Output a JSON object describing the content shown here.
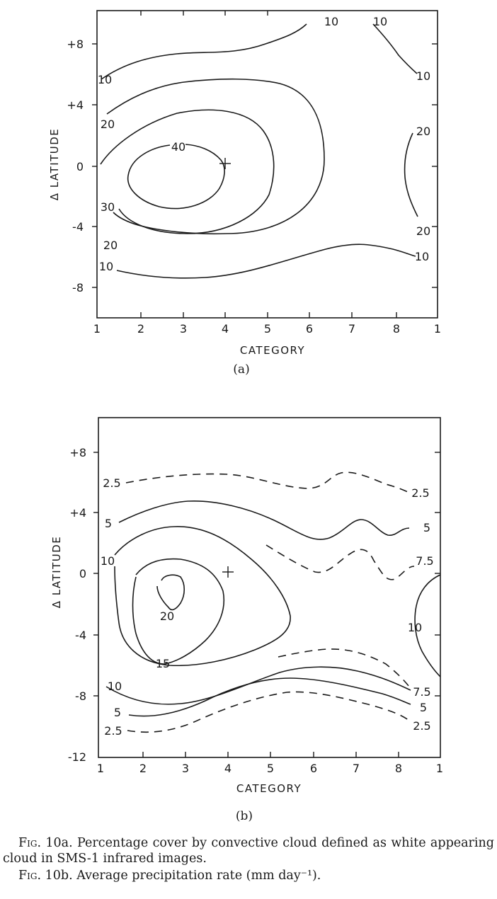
{
  "panels": [
    {
      "panel_label": "(a)",
      "xlabel": "CATEGORY",
      "ylabel": "Δ LATITUDE",
      "x_ticks": [
        "1",
        "2",
        "3",
        "4",
        "5",
        "6",
        "7",
        "8",
        "1"
      ],
      "y_ticks": [
        {
          "value": 8,
          "label": "+8"
        },
        {
          "value": 4,
          "label": "+4"
        },
        {
          "value": 0,
          "label": "0"
        },
        {
          "value": -4,
          "label": "-4"
        },
        {
          "value": -8,
          "label": "-8"
        }
      ],
      "contour_labels": [
        "10",
        "10",
        "10",
        "10",
        "20",
        "20",
        "20",
        "40",
        "30",
        "20",
        "10",
        "10"
      ],
      "marker": "+"
    },
    {
      "panel_label": "(b)",
      "xlabel": "CATEGORY",
      "ylabel": "Δ LATITUDE",
      "x_ticks": [
        "1",
        "2",
        "3",
        "4",
        "5",
        "6",
        "7",
        "8",
        "1"
      ],
      "y_ticks": [
        {
          "value": 8,
          "label": "+8"
        },
        {
          "value": 4,
          "label": "+4"
        },
        {
          "value": 0,
          "label": "0"
        },
        {
          "value": -4,
          "label": "-4"
        },
        {
          "value": -8,
          "label": "-8"
        },
        {
          "value": -12,
          "label": "-12"
        }
      ],
      "contour_labels": [
        "2.5",
        "2.5",
        "5",
        "5",
        "10",
        "7.5",
        "20",
        "10",
        "15",
        "10",
        "7.5",
        "5",
        "5",
        "2.5",
        "2.5"
      ],
      "marker": "+"
    }
  ],
  "chart_data": [
    {
      "type": "contour",
      "panel": "(a)",
      "xlabel": "CATEGORY",
      "ylabel": "Δ LATITUDE",
      "x_categories": [
        "1",
        "2",
        "3",
        "4",
        "5",
        "6",
        "7",
        "8",
        "1"
      ],
      "ylim": [
        -10,
        10.5
      ],
      "contour_levels": [
        10,
        20,
        30,
        40
      ],
      "center_marker": {
        "category": 4,
        "dlat": 0
      },
      "contours": [
        {
          "level": 10,
          "style": "solid",
          "points": [
            [
              1.1,
              6
            ],
            [
              2,
              7.2
            ],
            [
              3,
              7.8
            ],
            [
              4,
              7.9
            ],
            [
              4.8,
              8.5
            ],
            [
              5.1,
              9.8
            ]
          ]
        },
        {
          "level": 10,
          "style": "solid",
          "points": [
            [
              6.8,
              10.3
            ],
            [
              7.4,
              9.2
            ],
            [
              8,
              7.8
            ],
            [
              8.4,
              6.5
            ]
          ]
        },
        {
          "level": 20,
          "style": "solid",
          "points": [
            [
              1.1,
              2.1
            ],
            [
              2,
              3.8
            ],
            [
              3,
              5
            ],
            [
              4,
              5.3
            ],
            [
              5,
              4.6
            ],
            [
              5.9,
              3
            ],
            [
              6.3,
              0
            ],
            [
              5.7,
              -3.2
            ],
            [
              4.5,
              -5.2
            ],
            [
              3,
              -5.8
            ],
            [
              2,
              -5.5
            ],
            [
              1.3,
              -4.8
            ]
          ]
        },
        {
          "level": 20,
          "style": "solid",
          "points": [
            [
              8.3,
              2
            ],
            [
              8.2,
              0
            ],
            [
              8.3,
              -2
            ],
            [
              8.5,
              -3.5
            ]
          ]
        },
        {
          "level": 30,
          "style": "solid",
          "points": [
            [
              1.1,
              0
            ],
            [
              2,
              2.5
            ],
            [
              3,
              3.7
            ],
            [
              4.1,
              3.4
            ],
            [
              4.9,
              2
            ],
            [
              5.2,
              0
            ],
            [
              4.9,
              -2.4
            ],
            [
              4,
              -4.2
            ],
            [
              3,
              -4.6
            ],
            [
              2,
              -4
            ],
            [
              1.4,
              -3
            ]
          ]
        },
        {
          "level": 40,
          "style": "solid",
          "points": [
            [
              3.1,
              1.4
            ],
            [
              4,
              0
            ],
            [
              4,
              -1.5
            ],
            [
              3,
              -3.1
            ],
            [
              2,
              -2.5
            ],
            [
              1.8,
              -1
            ],
            [
              2.3,
              0.8
            ],
            [
              3,
              1.4
            ]
          ]
        },
        {
          "level": 10,
          "style": "solid",
          "points": [
            [
              1.5,
              -7.1
            ],
            [
              2.5,
              -7.4
            ],
            [
              4,
              -7.1
            ],
            [
              5.5,
              -5.9
            ],
            [
              7,
              -5.1
            ],
            [
              8,
              -5.6
            ],
            [
              8.5,
              -6
            ]
          ]
        }
      ]
    },
    {
      "type": "contour",
      "panel": "(b)",
      "xlabel": "CATEGORY",
      "ylabel": "Δ LATITUDE",
      "x_categories": [
        "1",
        "2",
        "3",
        "4",
        "5",
        "6",
        "7",
        "8",
        "1"
      ],
      "ylim": [
        -12,
        10.3
      ],
      "contour_levels": [
        2.5,
        5,
        7.5,
        10,
        15,
        20
      ],
      "units": "mm day-1",
      "center_marker": {
        "category": 4,
        "dlat": 0
      },
      "contours": [
        {
          "level": 2.5,
          "style": "dashed",
          "points": [
            [
              1.6,
              6
            ],
            [
              3,
              6.5
            ],
            [
              5,
              5.7
            ],
            [
              6,
              6
            ],
            [
              6.7,
              6.6
            ],
            [
              7.5,
              6
            ],
            [
              8.3,
              5.3
            ]
          ]
        },
        {
          "level": 5,
          "style": "solid",
          "points": [
            [
              1.5,
              3.2
            ],
            [
              3,
              4.8
            ],
            [
              4.5,
              3.6
            ],
            [
              5.5,
              2.2
            ],
            [
              6.5,
              2
            ],
            [
              7.2,
              3.6
            ],
            [
              8,
              2.4
            ],
            [
              8.4,
              3
            ]
          ]
        },
        {
          "level": 7.5,
          "style": "dashed",
          "points": [
            [
              5,
              1.8
            ],
            [
              6,
              0
            ],
            [
              7,
              1.5
            ],
            [
              7.2,
              1.6
            ],
            [
              8,
              -0.4
            ],
            [
              8.5,
              0
            ]
          ]
        },
        {
          "level": 10,
          "style": "solid",
          "points": [
            [
              1.5,
              0.9
            ],
            [
              2,
              2.3
            ],
            [
              3,
              3.1
            ],
            [
              4,
              2.5
            ],
            [
              5.5,
              -1.5
            ],
            [
              5.5,
              -2.8
            ],
            [
              4,
              -4.5
            ],
            [
              3,
              -5.6
            ],
            [
              2,
              -4
            ],
            [
              1.5,
              -2.5
            ],
            [
              1.5,
              0.2
            ]
          ]
        },
        {
          "level": 15,
          "style": "solid",
          "points": [
            [
              1.5,
              -2.5
            ],
            [
              1.7,
              -1
            ],
            [
              2.5,
              1.8
            ],
            [
              3.5,
              1.3
            ],
            [
              4,
              -0.8
            ],
            [
              3,
              -4.8
            ],
            [
              2.5,
              -5.9
            ],
            [
              1.8,
              -5
            ],
            [
              1.5,
              -3.5
            ]
          ]
        },
        {
          "level": 20,
          "style": "solid",
          "points": [
            [
              2.3,
              -1
            ],
            [
              2.5,
              0
            ],
            [
              2.9,
              -0.5
            ],
            [
              2.7,
              -2
            ],
            [
              2.4,
              -2.3
            ]
          ]
        },
        {
          "level": 10,
          "style": "solid",
          "points": [
            [
              9,
              0
            ],
            [
              8.5,
              -2
            ],
            [
              8.5,
              -5.8
            ],
            [
              9,
              -6.7
            ]
          ]
        },
        {
          "level": 7.5,
          "style": "dashed",
          "points": [
            [
              5.2,
              -5.4
            ],
            [
              6.2,
              -5
            ],
            [
              7.2,
              -5.8
            ],
            [
              8.3,
              -7.6
            ]
          ]
        },
        {
          "level": 5,
          "style": "solid",
          "points": [
            [
              1.5,
              -9.8
            ],
            [
              2.5,
              -9.5
            ],
            [
              4,
              -7.3
            ],
            [
              5.5,
              -6.3
            ],
            [
              7,
              -7.2
            ],
            [
              8.3,
              -8.6
            ]
          ]
        },
        {
          "level": 2.5,
          "style": "dashed",
          "points": [
            [
              1.5,
              -10.5
            ],
            [
              2.5,
              -10.6
            ],
            [
              4,
              -9.3
            ],
            [
              5.5,
              -7.8
            ],
            [
              7,
              -8.3
            ],
            [
              8.3,
              -9.7
            ]
          ]
        }
      ]
    }
  ],
  "captions": [
    {
      "fig": "Fig.",
      "text": " 10a. Percentage cover by convective cloud defined as white appearing cloud in SMS-1 infrared images."
    },
    {
      "fig": "Fig.",
      "text": " 10b. Average precipitation rate (mm day⁻¹)."
    }
  ]
}
